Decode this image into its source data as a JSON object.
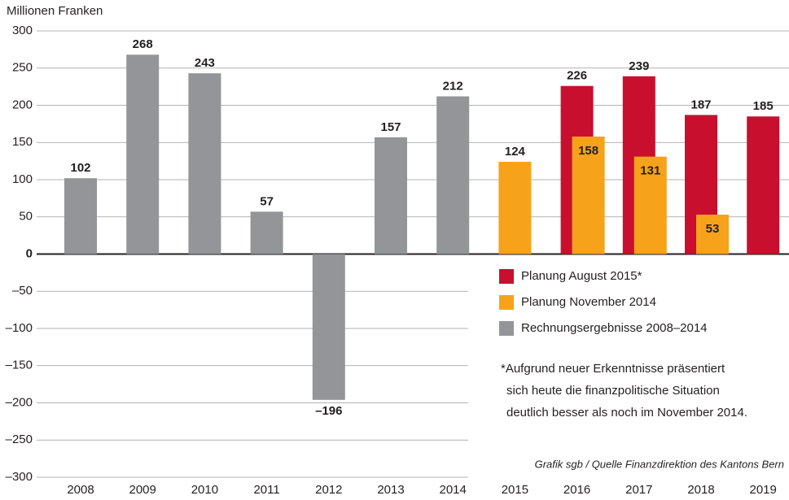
{
  "chart_data": {
    "type": "bar",
    "y_label": "Millionen Franken",
    "categories": [
      "2008",
      "2009",
      "2010",
      "2011",
      "2012",
      "2013",
      "2014",
      "2015",
      "2016",
      "2017",
      "2018",
      "2019"
    ],
    "series": [
      {
        "name": "Planung August 2015*",
        "color": "#c8102e",
        "values": [
          null,
          null,
          null,
          null,
          null,
          null,
          null,
          null,
          226,
          239,
          187,
          185
        ]
      },
      {
        "name": "Planung November 2014",
        "color": "#f7a21b",
        "values": [
          null,
          null,
          null,
          null,
          null,
          null,
          null,
          124,
          158,
          131,
          53,
          null
        ]
      },
      {
        "name": "Rechnungsergebnisse 2008–2014",
        "color": "#939598",
        "values": [
          102,
          268,
          243,
          57,
          -196,
          157,
          212,
          null,
          null,
          null,
          null,
          null
        ],
        "value_labels": [
          "102",
          "268",
          "243",
          "57",
          "–196",
          "157",
          "212",
          null,
          null,
          null,
          null,
          null
        ]
      }
    ],
    "ylim": [
      -300,
      300
    ],
    "yticks": [
      {
        "value": -300,
        "label": "–300"
      },
      {
        "value": -250,
        "label": "–250"
      },
      {
        "value": -200,
        "label": "–200"
      },
      {
        "value": -150,
        "label": "–150"
      },
      {
        "value": -100,
        "label": "–100"
      },
      {
        "value": -50,
        "label": "–50"
      },
      0,
      50,
      100,
      150,
      200,
      250,
      300
    ],
    "grid": true,
    "note": [
      "*Aufgrund neuer Erkenntnisse präsentiert",
      "sich heute die finanzpolitische Situation",
      "deutlich besser als noch im November 2014."
    ],
    "source": "Grafik sgb / Quelle Finanzdirektion des Kantons Bern"
  }
}
